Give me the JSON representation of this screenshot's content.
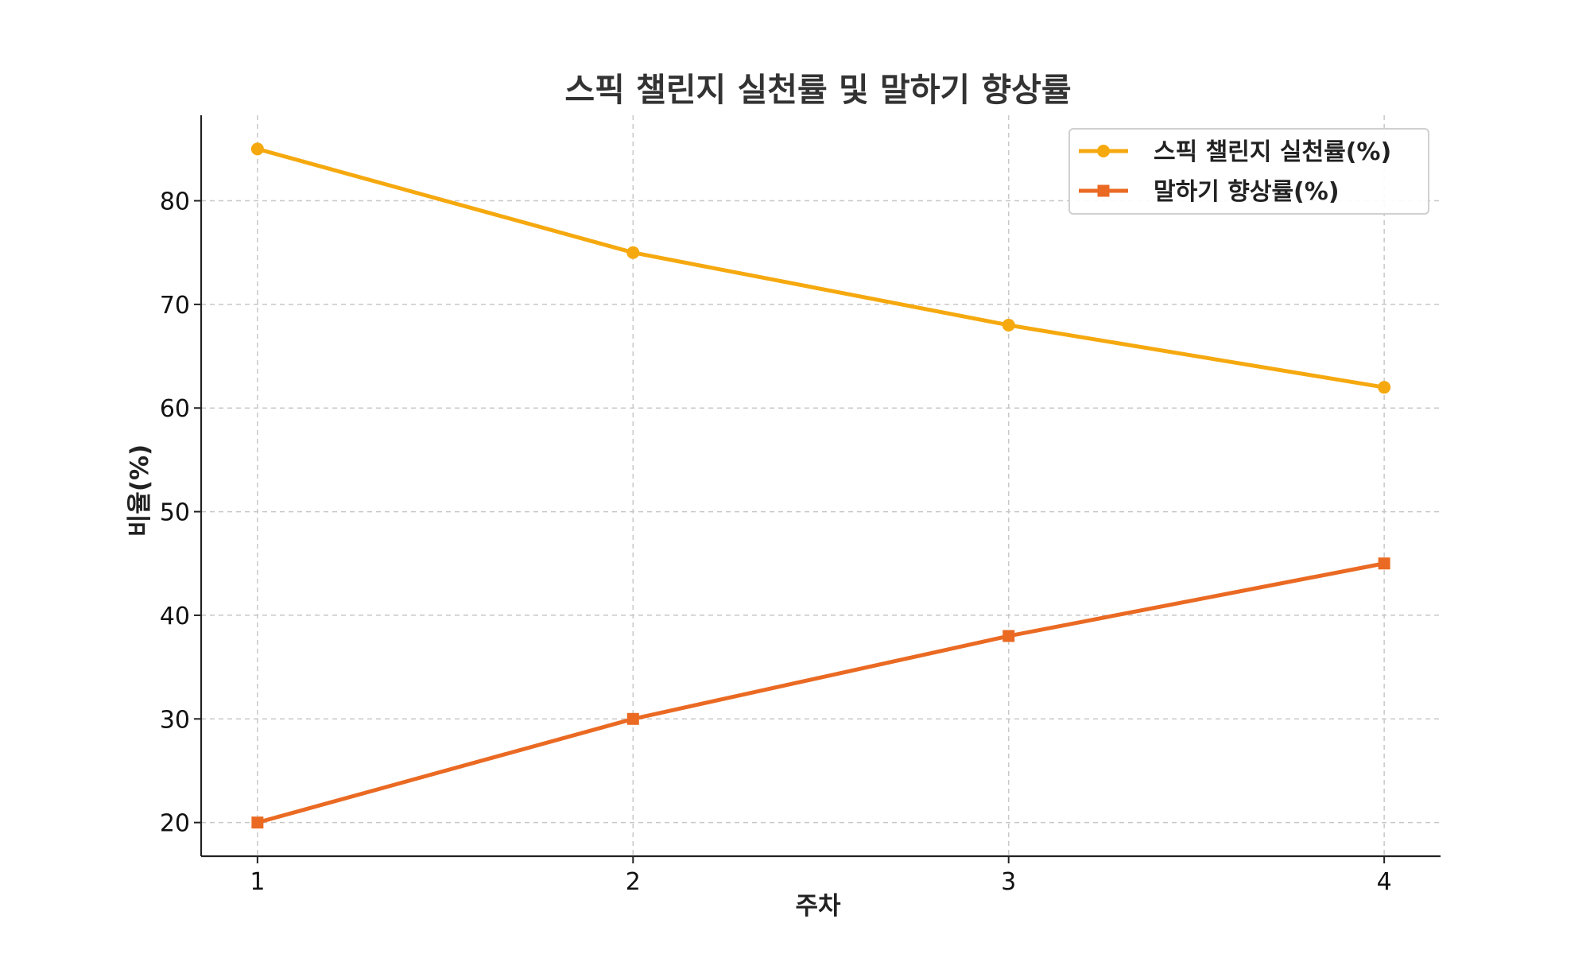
{
  "chart_data": {
    "type": "line",
    "title": "스픽 챌린지 실천률 및 말하기 향상률",
    "xlabel": "주차",
    "ylabel": "비율(%)",
    "x": [
      1,
      2,
      3,
      4
    ],
    "x_tick_labels": [
      "1",
      "2",
      "3",
      "4"
    ],
    "y_ticks": [
      20,
      30,
      40,
      50,
      60,
      70,
      80
    ],
    "xlim": [
      0.85,
      4.15
    ],
    "ylim": [
      16.75,
      88.25
    ],
    "grid": true,
    "legend_position": "top-right",
    "series": [
      {
        "name": "스픽 챌린지 실천률(%)",
        "values": [
          85,
          75,
          68,
          62
        ],
        "color": "#F5A90F",
        "marker": "circle"
      },
      {
        "name": "말하기 향상률(%)",
        "values": [
          20,
          30,
          38,
          45
        ],
        "color": "#EA6A23",
        "marker": "square"
      }
    ]
  }
}
